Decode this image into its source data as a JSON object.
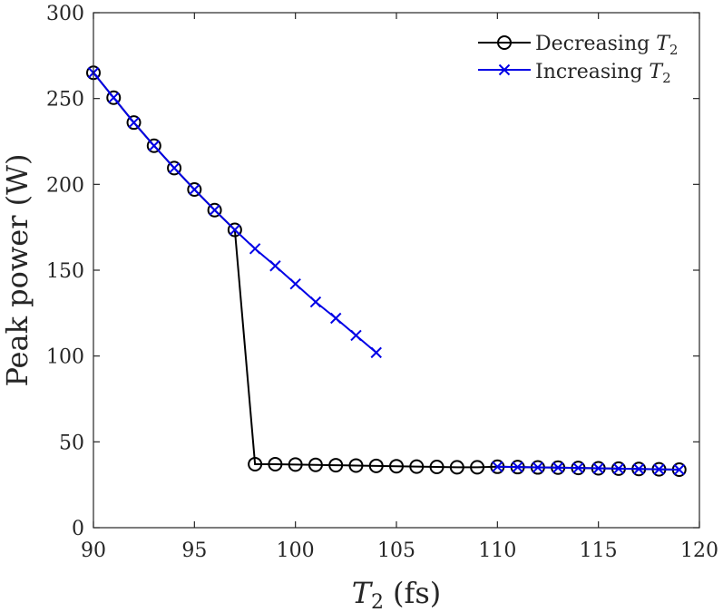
{
  "chart_data": {
    "type": "line",
    "xlabel": "T2 (fs)",
    "xlabel_var": "T",
    "xlabel_sub": "2",
    "xlabel_unit": "(fs)",
    "ylabel": "Peak power (W)",
    "xlim": [
      90,
      120
    ],
    "ylim": [
      0,
      300
    ],
    "xticks": [
      "90",
      "95",
      "100",
      "105",
      "110",
      "115",
      "120"
    ],
    "yticks": [
      "0",
      "50",
      "100",
      "150",
      "200",
      "250",
      "300"
    ],
    "grid": false,
    "legend_position": "top-right",
    "series": [
      {
        "name": "Decreasing T2",
        "legend_text": "Decreasing",
        "legend_var": "T",
        "legend_sub": "2",
        "color": "#000000",
        "marker": "circle",
        "x": [
          90,
          91,
          92,
          93,
          94,
          95,
          96,
          97,
          98,
          99,
          100,
          101,
          102,
          103,
          104,
          105,
          106,
          107,
          108,
          109,
          110,
          111,
          112,
          113,
          114,
          115,
          116,
          117,
          118,
          119
        ],
        "y": [
          265,
          250.5,
          236,
          222.5,
          209.5,
          197,
          185,
          173.5,
          37,
          37,
          36.8,
          36.6,
          36.4,
          36.2,
          36,
          35.8,
          35.6,
          35.4,
          35.2,
          35.2,
          35.5,
          35.3,
          35.1,
          35,
          34.8,
          34.6,
          34.4,
          34.2,
          34,
          33.8
        ]
      },
      {
        "name": "Increasing T2",
        "legend_text": "Increasing",
        "legend_var": "T",
        "legend_sub": "2",
        "color": "#0000e6",
        "marker": "x",
        "x": [
          90,
          91,
          92,
          93,
          94,
          95,
          96,
          97,
          98,
          99,
          100,
          101,
          102,
          103,
          104,
          110,
          111,
          112,
          113,
          114,
          115,
          116,
          117,
          118,
          119
        ],
        "y": [
          265,
          250.5,
          236,
          222.5,
          209.5,
          197,
          185,
          173.5,
          162.5,
          152.5,
          142,
          131.5,
          122,
          112,
          102,
          35.5,
          35.3,
          35.1,
          35,
          34.8,
          34.6,
          34.4,
          34.2,
          34,
          33.8
        ]
      }
    ]
  }
}
